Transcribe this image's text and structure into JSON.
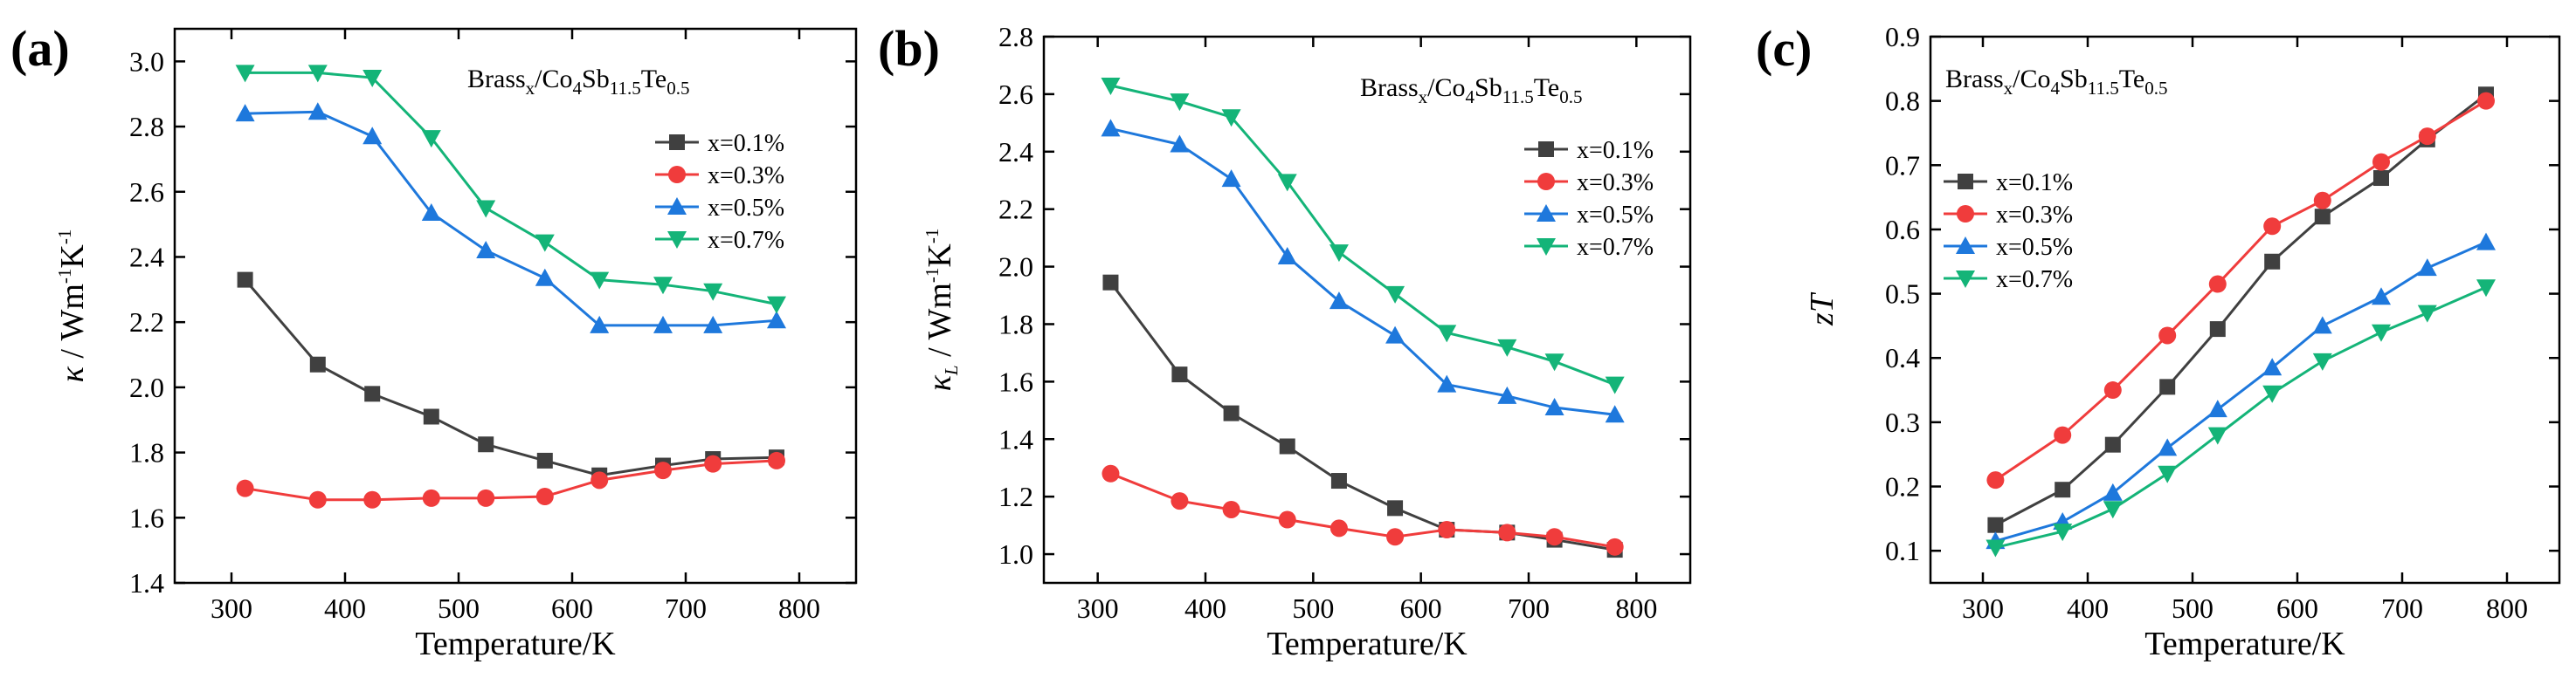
{
  "colors": {
    "x=0.1%": "#404040",
    "x=0.3%": "#f03c3c",
    "x=0.5%": "#1e78dc",
    "x=0.7%": "#14b478"
  },
  "markers": {
    "x=0.1%": "square",
    "x=0.3%": "circle",
    "x=0.5%": "triangle-up",
    "x=0.7%": "triangle-down"
  },
  "chart_data": [
    {
      "type": "line",
      "panel_label": "(a)",
      "annotation": {
        "p1": "Brass",
        "s1": "x",
        "p2": "/Co",
        "s2": "4",
        "p3": "Sb",
        "s3": "11.5",
        "p4": "Te",
        "s4": "0.5"
      },
      "xlabel": "Temperature/K",
      "ylabel": {
        "sym": "κ",
        "unit": " / Wm",
        "e1": "-1",
        "k": "K",
        "e2": "-1"
      },
      "xlim": [
        250,
        850
      ],
      "ylim": [
        1.4,
        3.1
      ],
      "xticks": [
        "300",
        "400",
        "500",
        "600",
        "700",
        "800"
      ],
      "yticks": [
        "1.4",
        "1.6",
        "1.8",
        "2.0",
        "2.2",
        "2.4",
        "2.6",
        "2.8",
        "3.0"
      ],
      "legend_position": "right-middle",
      "x": [
        312,
        376,
        424,
        476,
        524,
        576,
        624,
        680,
        724,
        780
      ],
      "series": [
        {
          "name": "x=0.1%",
          "values": [
            2.33,
            2.07,
            1.98,
            1.91,
            1.825,
            1.775,
            1.73,
            1.76,
            1.78,
            1.785
          ]
        },
        {
          "name": "x=0.3%",
          "values": [
            1.69,
            1.655,
            1.655,
            1.66,
            1.66,
            1.665,
            1.715,
            1.745,
            1.765,
            1.775
          ]
        },
        {
          "name": "x=0.5%",
          "values": [
            2.84,
            2.845,
            2.77,
            2.535,
            2.42,
            2.335,
            2.19,
            2.19,
            2.19,
            2.205
          ]
        },
        {
          "name": "x=0.7%",
          "values": [
            2.965,
            2.965,
            2.95,
            2.765,
            2.55,
            2.445,
            2.33,
            2.315,
            2.295,
            2.255
          ]
        }
      ]
    },
    {
      "type": "line",
      "panel_label": "(b)",
      "annotation": {
        "p1": "Brass",
        "s1": "x",
        "p2": "/Co",
        "s2": "4",
        "p3": "Sb",
        "s3": "11.5",
        "p4": "Te",
        "s4": "0.5"
      },
      "xlabel": "Temperature/K",
      "ylabel": {
        "sym": "κ",
        "symsub": "L",
        "unit": " / Wm",
        "e1": "-1",
        "k": "K",
        "e2": "-1"
      },
      "xlim": [
        250,
        850
      ],
      "ylim": [
        0.9,
        2.8
      ],
      "xticks": [
        "300",
        "400",
        "500",
        "600",
        "700",
        "800"
      ],
      "yticks": [
        "1.0",
        "1.2",
        "1.4",
        "1.6",
        "1.8",
        "2.0",
        "2.2",
        "2.4",
        "2.6",
        "2.8"
      ],
      "legend_position": "right-middle",
      "x": [
        312,
        376,
        424,
        476,
        524,
        576,
        624,
        680,
        724,
        780
      ],
      "series": [
        {
          "name": "x=0.1%",
          "values": [
            1.945,
            1.625,
            1.49,
            1.375,
            1.255,
            1.16,
            1.085,
            1.075,
            1.05,
            1.015
          ]
        },
        {
          "name": "x=0.3%",
          "values": [
            1.28,
            1.185,
            1.155,
            1.12,
            1.09,
            1.06,
            1.085,
            1.075,
            1.06,
            1.025
          ]
        },
        {
          "name": "x=0.5%",
          "values": [
            2.48,
            2.425,
            2.305,
            2.035,
            1.88,
            1.76,
            1.59,
            1.55,
            1.51,
            1.485
          ]
        },
        {
          "name": "x=0.7%",
          "values": [
            2.63,
            2.575,
            2.52,
            2.295,
            2.05,
            1.905,
            1.77,
            1.72,
            1.67,
            1.59
          ]
        }
      ]
    },
    {
      "type": "line",
      "panel_label": "(c)",
      "annotation": {
        "p1": "Brass",
        "s1": "x",
        "p2": "/Co",
        "s2": "4",
        "p3": "Sb",
        "s3": "11.5",
        "p4": "Te",
        "s4": "0.5"
      },
      "xlabel": "Temperature/K",
      "ylabel": {
        "sym": "zT"
      },
      "xlim": [
        250,
        850
      ],
      "ylim": [
        0.05,
        0.9
      ],
      "xticks": [
        "300",
        "400",
        "500",
        "600",
        "700",
        "800"
      ],
      "yticks": [
        "0.1",
        "0.2",
        "0.3",
        "0.4",
        "0.5",
        "0.6",
        "0.7",
        "0.8",
        "0.9"
      ],
      "legend_position": "left-middle",
      "x": [
        312,
        376,
        424,
        476,
        524,
        576,
        624,
        680,
        724,
        780
      ],
      "series": [
        {
          "name": "x=0.1%",
          "values": [
            0.14,
            0.195,
            0.265,
            0.355,
            0.445,
            0.55,
            0.62,
            0.68,
            0.74,
            0.81
          ]
        },
        {
          "name": "x=0.3%",
          "values": [
            0.21,
            0.28,
            0.35,
            0.435,
            0.515,
            0.605,
            0.645,
            0.705,
            0.745,
            0.8
          ]
        },
        {
          "name": "x=0.5%",
          "values": [
            0.115,
            0.145,
            0.19,
            0.26,
            0.32,
            0.385,
            0.45,
            0.495,
            0.54,
            0.58
          ]
        },
        {
          "name": "x=0.7%",
          "values": [
            0.105,
            0.13,
            0.165,
            0.22,
            0.28,
            0.345,
            0.395,
            0.44,
            0.47,
            0.51
          ]
        }
      ]
    }
  ]
}
